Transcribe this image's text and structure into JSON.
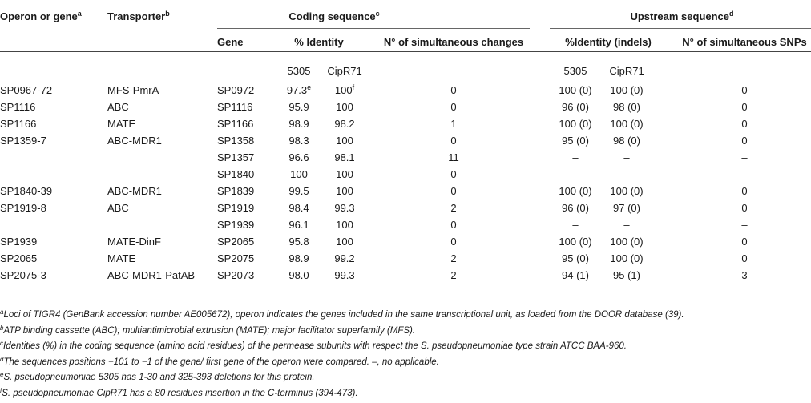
{
  "header": {
    "col_operon": "Operon or gene",
    "col_operon_sup": "a",
    "col_transporter": "Transporter",
    "col_transporter_sup": "b",
    "group_coding": "Coding sequence",
    "group_coding_sup": "c",
    "group_upstream": "Upstream sequence",
    "group_upstream_sup": "d",
    "col_gene": "Gene",
    "col_identity": "% Identity",
    "col_changes": "N° of simultaneous changes",
    "col_identity_indels": "%Identity (indels)",
    "col_snps": "N° of simultaneous SNPs",
    "strain_a": "5305",
    "strain_b": "CipR71",
    "strain_c": "5305",
    "strain_d": "CipR71"
  },
  "rows": [
    {
      "operon": "SP0967-72",
      "transporter": "MFS-PmrA",
      "gene": "SP0972",
      "id5305": "97.3",
      "id5305_sup": "e",
      "idcip": "100",
      "idcip_sup": "f",
      "changes": "0",
      "up5305": "100 (0)",
      "upcip": "100 (0)",
      "snps": "0"
    },
    {
      "operon": "SP1116",
      "transporter": "ABC",
      "gene": "SP1116",
      "id5305": "95.9",
      "id5305_sup": "",
      "idcip": "100",
      "idcip_sup": "",
      "changes": "0",
      "up5305": "96 (0)",
      "upcip": "98 (0)",
      "snps": "0"
    },
    {
      "operon": "SP1166",
      "transporter": "MATE",
      "gene": "SP1166",
      "id5305": "98.9",
      "id5305_sup": "",
      "idcip": "98.2",
      "idcip_sup": "",
      "changes": "1",
      "up5305": "100 (0)",
      "upcip": "100 (0)",
      "snps": "0"
    },
    {
      "operon": "SP1359-7",
      "transporter": "ABC-MDR1",
      "gene": "SP1358",
      "id5305": "98.3",
      "id5305_sup": "",
      "idcip": "100",
      "idcip_sup": "",
      "changes": "0",
      "up5305": "95 (0)",
      "upcip": "98 (0)",
      "snps": "0"
    },
    {
      "operon": "",
      "transporter": "",
      "gene": "SP1357",
      "id5305": "96.6",
      "id5305_sup": "",
      "idcip": "98.1",
      "idcip_sup": "",
      "changes": "11",
      "up5305": "–",
      "upcip": "–",
      "snps": "–"
    },
    {
      "operon": "",
      "transporter": "",
      "gene": "SP1840",
      "id5305": "100",
      "id5305_sup": "",
      "idcip": "100",
      "idcip_sup": "",
      "changes": "0",
      "up5305": "–",
      "upcip": "–",
      "snps": "–"
    },
    {
      "operon": "SP1840-39",
      "transporter": "ABC-MDR1",
      "gene": "SP1839",
      "id5305": "99.5",
      "id5305_sup": "",
      "idcip": "100",
      "idcip_sup": "",
      "changes": "0",
      "up5305": "100 (0)",
      "upcip": "100 (0)",
      "snps": "0"
    },
    {
      "operon": "SP1919-8",
      "transporter": "ABC",
      "gene": "SP1919",
      "id5305": "98.4",
      "id5305_sup": "",
      "idcip": "99.3",
      "idcip_sup": "",
      "changes": "2",
      "up5305": "96 (0)",
      "upcip": "97 (0)",
      "snps": "0"
    },
    {
      "operon": "",
      "transporter": "",
      "gene": "SP1939",
      "id5305": "96.1",
      "id5305_sup": "",
      "idcip": "100",
      "idcip_sup": "",
      "changes": "0",
      "up5305": "–",
      "upcip": "–",
      "snps": "–"
    },
    {
      "operon": "SP1939",
      "transporter": "MATE-DinF",
      "gene": "SP2065",
      "id5305": "95.8",
      "id5305_sup": "",
      "idcip": "100",
      "idcip_sup": "",
      "changes": "0",
      "up5305": "100 (0)",
      "upcip": "100 (0)",
      "snps": "0"
    },
    {
      "operon": "SP2065",
      "transporter": "MATE",
      "gene": "SP2075",
      "id5305": "98.9",
      "id5305_sup": "",
      "idcip": "99.2",
      "idcip_sup": "",
      "changes": "2",
      "up5305": "95 (0)",
      "upcip": "100 (0)",
      "snps": "0"
    },
    {
      "operon": "SP2075-3",
      "transporter": "ABC-MDR1-PatAB",
      "gene": "SP2073",
      "id5305": "98.0",
      "id5305_sup": "",
      "idcip": "99.3",
      "idcip_sup": "",
      "changes": "2",
      "up5305": "94 (1)",
      "upcip": "95 (1)",
      "snps": "3"
    }
  ],
  "footnotes": [
    {
      "mark": "a",
      "text": "Loci of TIGR4 (GenBank accession number AE005672), operon indicates the genes included in the same transcriptional unit, as loaded from the DOOR database (39)."
    },
    {
      "mark": "b",
      "text": "ATP binding cassette (ABC); multiantimicrobial extrusion (MATE); major facilitator superfamily (MFS)."
    },
    {
      "mark": "c",
      "text": "Identities (%) in the coding sequence (amino acid residues) of the permease subunits with respect the S. pseudopneumoniae type strain ATCC BAA-960."
    },
    {
      "mark": "d",
      "text": "The sequences positions −101 to −1 of the gene/ first gene of the operon were compared. –, no applicable."
    },
    {
      "mark": "e",
      "text": "S. pseudopneumoniae 5305 has 1-30 and 325-393 deletions for this protein."
    },
    {
      "mark": "f",
      "text": "S. pseudopneumoniae CipR71 has a 80 residues insertion in the C-terminus (394-473)."
    }
  ]
}
